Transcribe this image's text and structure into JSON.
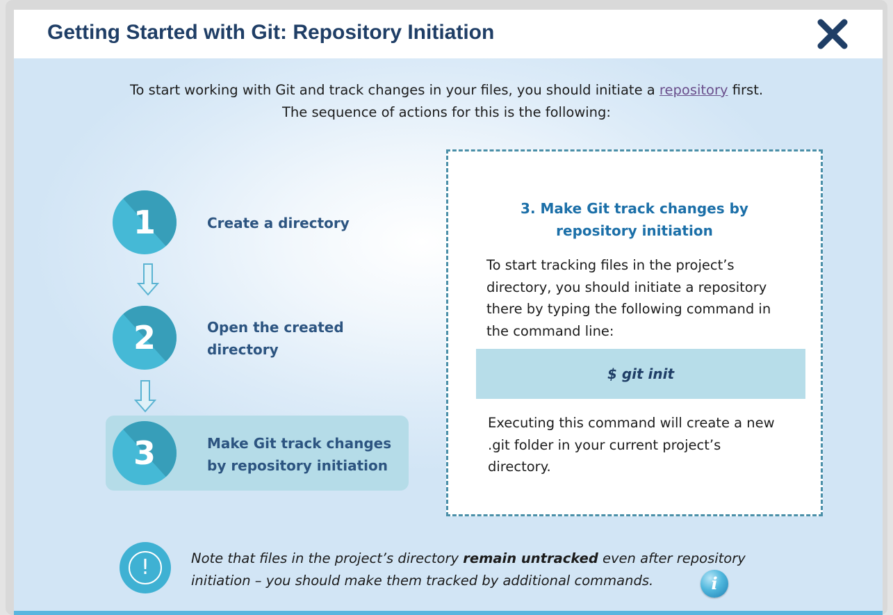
{
  "header": {
    "title": "Getting Started with Git: Repository Initiation",
    "close_icon": "close-icon"
  },
  "intro": {
    "line1_before": "To start working with Git and track changes in your files, you should initiate a ",
    "line1_link": "repository",
    "line1_after": " first.",
    "line2": "The sequence of actions for this is the following:"
  },
  "steps": [
    {
      "number": "1",
      "label": "Create a directory",
      "active": false
    },
    {
      "number": "2",
      "label": "Open the created directory",
      "active": false
    },
    {
      "number": "3",
      "label": "Make Git track changes by repository initiation",
      "active": true
    }
  ],
  "detail": {
    "title": "3. Make Git track changes by repository initiation",
    "text1": "To start tracking files in the project’s directory, you should initiate a repository there by typing the following command in the command line:",
    "command": "$ git init",
    "text2": "Executing this command will create a new .git folder in your current project’s directory."
  },
  "note": {
    "icon": "exclamation-icon",
    "text_before": "Note that files in the project’s directory ",
    "text_bold": "remain untracked",
    "text_mid": " even after repository",
    "text_line2": "initiation – you should make them tracked by additional commands.",
    "info_icon": "info-icon",
    "info_glyph": "i"
  },
  "colors": {
    "title": "#1f3e66",
    "step_circle": "#45b9d6",
    "step_highlight": "#b5dce8",
    "detail_title": "#1b6fa8",
    "command_bg": "#b7dde9",
    "accent_line": "#5bb6df"
  }
}
